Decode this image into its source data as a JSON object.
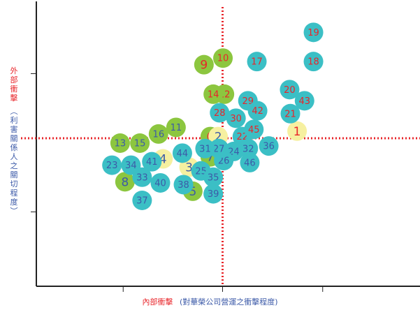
{
  "chart_data": {
    "type": "scatter",
    "xlabel_main": "內部衝擊",
    "xlabel_sub": "(對華榮公司營運之衝擊程度)",
    "ylabel_main": "外部衝擊",
    "ylabel_sub": "(利害關係人之關切程度)",
    "grid": false,
    "x_divider": 5,
    "y_divider": 5,
    "xlim": [
      0,
      10
    ],
    "ylim": [
      0,
      10
    ],
    "colors": {
      "green": "#8cc63f",
      "teal": "#3bbfc5",
      "yellow": "#f6f0a0",
      "label_red": "#e8252a",
      "label_blue": "#3c5aa8",
      "divider": "#e8252a",
      "axis": "#222222"
    },
    "points": [
      {
        "label": "1",
        "x": 7.0,
        "y": 5.42,
        "color": "yellow",
        "label_color": "red"
      },
      {
        "label": "2",
        "x": 4.88,
        "y": 5.23,
        "color": "yellow",
        "label_color": "blue"
      },
      {
        "label": "3",
        "x": 4.1,
        "y": 4.16,
        "color": "yellow",
        "label_color": "blue"
      },
      {
        "label": "4",
        "x": 3.4,
        "y": 4.45,
        "color": "yellow",
        "label_color": "blue"
      },
      {
        "label": "5",
        "x": 4.2,
        "y": 3.32,
        "color": "green",
        "label_color": "blue"
      },
      {
        "label": "6",
        "x": 4.67,
        "y": 5.23,
        "color": "green",
        "label_color": "red"
      },
      {
        "label": "7",
        "x": 4.67,
        "y": 4.52,
        "color": "green",
        "label_color": "blue"
      },
      {
        "label": "8",
        "x": 2.38,
        "y": 3.65,
        "color": "green",
        "label_color": "blue"
      },
      {
        "label": "9",
        "x": 4.5,
        "y": 7.74,
        "color": "green",
        "label_color": "red"
      },
      {
        "label": "10",
        "x": 5.01,
        "y": 7.97,
        "color": "green",
        "label_color": "red"
      },
      {
        "label": "11",
        "x": 3.75,
        "y": 5.55,
        "color": "green",
        "label_color": "blue"
      },
      {
        "label": "12",
        "x": 5.05,
        "y": 6.71,
        "color": "green",
        "label_color": "red"
      },
      {
        "label": "13",
        "x": 2.25,
        "y": 5.0,
        "color": "green",
        "label_color": "blue"
      },
      {
        "label": "14",
        "x": 4.75,
        "y": 6.71,
        "color": "green",
        "label_color": "red"
      },
      {
        "label": "15",
        "x": 2.78,
        "y": 5.0,
        "color": "green",
        "label_color": "blue"
      },
      {
        "label": "16",
        "x": 3.28,
        "y": 5.32,
        "color": "green",
        "label_color": "blue"
      },
      {
        "label": "17",
        "x": 5.92,
        "y": 7.85,
        "color": "teal",
        "label_color": "red"
      },
      {
        "label": "18",
        "x": 7.44,
        "y": 7.85,
        "color": "teal",
        "label_color": "red"
      },
      {
        "label": "19",
        "x": 7.44,
        "y": 8.87,
        "color": "teal",
        "label_color": "red"
      },
      {
        "label": "20",
        "x": 6.8,
        "y": 6.87,
        "color": "teal",
        "label_color": "red"
      },
      {
        "label": "21",
        "x": 6.82,
        "y": 6.03,
        "color": "teal",
        "label_color": "red"
      },
      {
        "label": "22",
        "x": 5.53,
        "y": 5.23,
        "color": "teal",
        "label_color": "red"
      },
      {
        "label": "23",
        "x": 2.03,
        "y": 4.23,
        "color": "teal",
        "label_color": "blue"
      },
      {
        "label": "24",
        "x": 5.3,
        "y": 4.71,
        "color": "teal",
        "label_color": "blue"
      },
      {
        "label": "25",
        "x": 4.42,
        "y": 4.03,
        "color": "teal",
        "label_color": "blue"
      },
      {
        "label": "26",
        "x": 5.03,
        "y": 4.39,
        "color": "teal",
        "label_color": "blue"
      },
      {
        "label": "27",
        "x": 4.9,
        "y": 4.81,
        "color": "teal",
        "label_color": "blue"
      },
      {
        "label": "28",
        "x": 4.92,
        "y": 6.06,
        "color": "teal",
        "label_color": "red"
      },
      {
        "label": "29",
        "x": 5.68,
        "y": 6.48,
        "color": "teal",
        "label_color": "red"
      },
      {
        "label": "30",
        "x": 5.36,
        "y": 5.87,
        "color": "teal",
        "label_color": "red"
      },
      {
        "label": "31",
        "x": 4.53,
        "y": 4.81,
        "color": "teal",
        "label_color": "blue"
      },
      {
        "label": "32",
        "x": 5.69,
        "y": 4.81,
        "color": "teal",
        "label_color": "blue"
      },
      {
        "label": "33",
        "x": 2.84,
        "y": 3.81,
        "color": "teal",
        "label_color": "blue"
      },
      {
        "label": "34",
        "x": 2.54,
        "y": 4.23,
        "color": "teal",
        "label_color": "blue"
      },
      {
        "label": "35",
        "x": 4.75,
        "y": 3.81,
        "color": "teal",
        "label_color": "blue"
      },
      {
        "label": "36",
        "x": 6.24,
        "y": 4.9,
        "color": "teal",
        "label_color": "blue"
      },
      {
        "label": "37",
        "x": 2.84,
        "y": 3.0,
        "color": "teal",
        "label_color": "blue"
      },
      {
        "label": "38",
        "x": 3.95,
        "y": 3.55,
        "color": "teal",
        "label_color": "blue"
      },
      {
        "label": "39",
        "x": 4.75,
        "y": 3.23,
        "color": "teal",
        "label_color": "blue"
      },
      {
        "label": "40",
        "x": 3.33,
        "y": 3.61,
        "color": "teal",
        "label_color": "blue"
      },
      {
        "label": "41",
        "x": 3.1,
        "y": 4.35,
        "color": "teal",
        "label_color": "blue"
      },
      {
        "label": "42",
        "x": 5.94,
        "y": 6.13,
        "color": "teal",
        "label_color": "red"
      },
      {
        "label": "43",
        "x": 7.2,
        "y": 6.48,
        "color": "teal",
        "label_color": "red"
      },
      {
        "label": "44",
        "x": 3.92,
        "y": 4.65,
        "color": "teal",
        "label_color": "blue"
      },
      {
        "label": "45",
        "x": 5.84,
        "y": 5.48,
        "color": "teal",
        "label_color": "red"
      },
      {
        "label": "46",
        "x": 5.73,
        "y": 4.32,
        "color": "teal",
        "label_color": "blue"
      }
    ]
  }
}
